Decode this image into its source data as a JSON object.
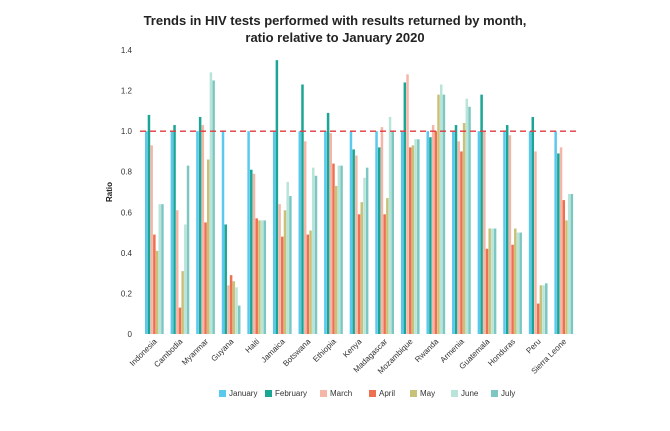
{
  "chart_data": {
    "type": "bar",
    "title_line1": "Trends in HIV tests performed with results returned by month,",
    "title_line2": "ratio relative to January 2020",
    "xlabel": "",
    "ylabel": "Ratio",
    "ylim": [
      0,
      1.4
    ],
    "yticks": [
      "0",
      "0.2",
      "0.4",
      "0.6",
      "0.8",
      "1.0",
      "1.2",
      "1.4"
    ],
    "reference_line": 1.0,
    "reference_color": "#e0393e",
    "grid": false,
    "legend_position": "bottom",
    "categories": [
      "Indonesia",
      "Cambodia",
      "Myanmar",
      "Guyana",
      "Haiti",
      "Jamaica",
      "Botswana",
      "Ethiopia",
      "Kenya",
      "Madagascar",
      "Mozambique",
      "Rwanda",
      "Armenia",
      "Guatemala",
      "Honduras",
      "Peru",
      "Sierra Leone"
    ],
    "series": [
      {
        "name": "January",
        "color": "#5bc8ee",
        "values": [
          1,
          1,
          1,
          1,
          1,
          1,
          1,
          1,
          1,
          1,
          1,
          1,
          1,
          1,
          1,
          1,
          1
        ]
      },
      {
        "name": "February",
        "color": "#1aa594",
        "values": [
          1.08,
          1.03,
          1.07,
          0.54,
          0.81,
          1.35,
          1.23,
          1.09,
          0.91,
          0.92,
          1.24,
          0.97,
          1.03,
          1.18,
          1.03,
          1.07,
          0.89
        ]
      },
      {
        "name": "March",
        "color": "#f5b5a7",
        "values": [
          0.93,
          0.61,
          1.03,
          0.24,
          0.79,
          0.64,
          0.95,
          0.99,
          0.88,
          1.02,
          1.28,
          1.03,
          0.95,
          1.0,
          0.98,
          0.9,
          0.92
        ]
      },
      {
        "name": "April",
        "color": "#ee7050",
        "values": [
          0.49,
          0.13,
          0.55,
          0.29,
          0.57,
          0.48,
          0.49,
          0.84,
          0.59,
          0.59,
          0.92,
          1.0,
          0.9,
          0.42,
          0.44,
          0.15,
          0.66
        ]
      },
      {
        "name": "May",
        "color": "#c8c279",
        "values": [
          0.41,
          0.31,
          0.86,
          0.26,
          0.56,
          0.61,
          0.51,
          0.73,
          0.65,
          0.67,
          0.93,
          1.18,
          1.04,
          0.52,
          0.52,
          0.24,
          0.56
        ]
      },
      {
        "name": "June",
        "color": "#b9e4d9",
        "values": [
          0.64,
          0.54,
          1.29,
          0.23,
          0.56,
          0.75,
          0.82,
          0.83,
          0.77,
          1.07,
          0.96,
          1.23,
          1.16,
          0.52,
          0.5,
          0.24,
          0.69
        ]
      },
      {
        "name": "July",
        "color": "#7cc7c1",
        "values": [
          0.64,
          0.83,
          1.25,
          0.14,
          0.56,
          0.68,
          0.78,
          0.83,
          0.82,
          1.0,
          0.96,
          1.18,
          1.12,
          0.52,
          0.5,
          0.25,
          0.69
        ]
      }
    ]
  }
}
